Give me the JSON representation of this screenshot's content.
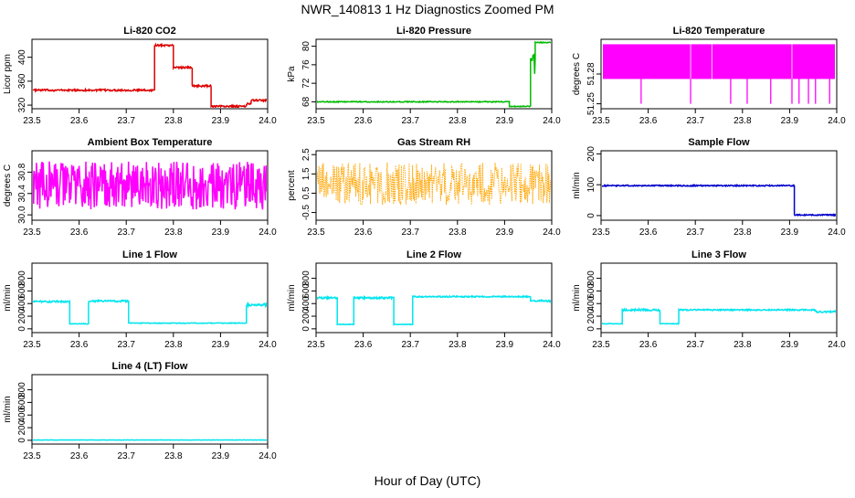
{
  "title": "NWR_140813  1 Hz Diagnostics Zoomed PM",
  "xlabel": "Hour of Day (UTC)",
  "chart_data": [
    {
      "type": "line",
      "title": "Li-820 CO2",
      "ylabel": "Licor ppm",
      "color": "#dd0000",
      "xlim": [
        23.5,
        24.0
      ],
      "ylim": [
        314,
        430
      ],
      "xticks": [
        "23.5",
        "23.6",
        "23.7",
        "23.8",
        "23.9",
        "24.0"
      ],
      "yticks": [
        "320",
        "360",
        "400"
      ],
      "ytick_values": [
        320,
        360,
        400
      ],
      "segments": [
        [
          23.5,
          23.76,
          345,
          1.5
        ],
        [
          23.76,
          23.8,
          420,
          1.5
        ],
        [
          23.8,
          23.84,
          383,
          1.5
        ],
        [
          23.84,
          23.88,
          352,
          1.5
        ],
        [
          23.88,
          23.955,
          318,
          1.5
        ],
        [
          23.955,
          23.965,
          322,
          1.5
        ],
        [
          23.965,
          24.0,
          328,
          1.5
        ]
      ]
    },
    {
      "type": "line",
      "title": "Li-820 Pressure",
      "ylabel": "kPa",
      "color": "#00bb00",
      "xlim": [
        23.5,
        24.0
      ],
      "ylim": [
        66.5,
        81.5
      ],
      "xticks": [
        "23.5",
        "23.6",
        "23.7",
        "23.8",
        "23.9",
        "24.0"
      ],
      "yticks": [
        "68",
        "72",
        "76",
        "80"
      ],
      "ytick_values": [
        68,
        72,
        76,
        80
      ],
      "segments": [
        [
          23.5,
          23.91,
          68,
          0.1
        ],
        [
          23.91,
          23.955,
          67,
          0.1
        ],
        [
          23.955,
          23.965,
          76,
          2.5
        ],
        [
          23.965,
          24.0,
          80.8,
          0.1
        ]
      ]
    },
    {
      "type": "line",
      "title": "Li-820 Temperature",
      "ylabel": "degrees C",
      "color": "#ff00ff",
      "xlim": [
        23.5,
        24.0
      ],
      "ylim": [
        51.245,
        51.315
      ],
      "xticks": [
        "23.5",
        "23.6",
        "23.7",
        "23.8",
        "23.9",
        "24.0"
      ],
      "yticks": [
        "51.25",
        "51.28"
      ],
      "ytick_values": [
        51.25,
        51.28
      ],
      "band": [
        23.5,
        24.0,
        51.275,
        51.31
      ],
      "spikes": [
        23.585,
        23.69,
        23.775,
        23.81,
        23.86,
        23.905,
        23.92,
        23.94,
        23.955,
        23.985
      ],
      "spike_floor": 51.25
    },
    {
      "type": "line",
      "title": "Ambient Box Temperature",
      "ylabel": "degrees C",
      "color": "#ff00ff",
      "xlim": [
        23.5,
        24.0
      ],
      "ylim": [
        29.9,
        31.2
      ],
      "xticks": [
        "23.5",
        "23.6",
        "23.7",
        "23.8",
        "23.9",
        "24.0"
      ],
      "yticks": [
        "30.0",
        "30.4",
        "30.8"
      ],
      "ytick_values": [
        30.0,
        30.4,
        30.8
      ],
      "segments": [
        [
          23.5,
          24.0,
          30.55,
          0.45
        ]
      ]
    },
    {
      "type": "line",
      "title": "Gas Stream RH",
      "ylabel": "percent",
      "color": "#ffa500",
      "xlim": [
        23.5,
        24.0
      ],
      "ylim": [
        -0.9,
        2.7
      ],
      "xticks": [
        "23.5",
        "23.6",
        "23.7",
        "23.8",
        "23.9",
        "24.0"
      ],
      "yticks": [
        "-0.5",
        "0.5",
        "1.5",
        "2.5"
      ],
      "ytick_values": [
        -0.5,
        0.5,
        1.5,
        2.5
      ],
      "dotted": true,
      "segments": [
        [
          23.5,
          24.0,
          1.0,
          1.1
        ]
      ]
    },
    {
      "type": "line",
      "title": "Sample Flow",
      "ylabel": "ml/min",
      "color": "#0000cc",
      "xlim": [
        23.5,
        24.0
      ],
      "ylim": [
        -15,
        210
      ],
      "xticks": [
        "23.5",
        "23.6",
        "23.7",
        "23.8",
        "23.9",
        "24.0"
      ],
      "yticks": [
        "0",
        "100",
        "200"
      ],
      "ytick_values": [
        0,
        100,
        200
      ],
      "segments": [
        [
          23.5,
          23.91,
          97,
          2
        ],
        [
          23.91,
          24.0,
          2,
          2
        ]
      ]
    },
    {
      "type": "line",
      "title": "Line 1 Flow",
      "ylabel": "ml/min",
      "color": "#00e5ee",
      "xlim": [
        23.5,
        24.0
      ],
      "ylim": [
        -60,
        1040
      ],
      "xticks": [
        "23.5",
        "23.6",
        "23.7",
        "23.8",
        "23.9",
        "24.0"
      ],
      "yticks": [
        "0",
        "200",
        "400",
        "600",
        "800"
      ],
      "ytick_values": [
        0,
        200,
        400,
        600,
        800
      ],
      "segments": [
        [
          23.5,
          23.58,
          430,
          15
        ],
        [
          23.58,
          23.62,
          80,
          5
        ],
        [
          23.62,
          23.705,
          440,
          15
        ],
        [
          23.705,
          23.955,
          90,
          5
        ],
        [
          23.955,
          24.0,
          380,
          20
        ]
      ]
    },
    {
      "type": "line",
      "title": "Line 2 Flow",
      "ylabel": "ml/min",
      "color": "#00e5ee",
      "xlim": [
        23.5,
        24.0
      ],
      "ylim": [
        -60,
        1040
      ],
      "xticks": [
        "23.5",
        "23.6",
        "23.7",
        "23.8",
        "23.9",
        "24.0"
      ],
      "yticks": [
        "0",
        "200",
        "400",
        "600",
        "800"
      ],
      "ytick_values": [
        0,
        200,
        400,
        600,
        800
      ],
      "segments": [
        [
          23.5,
          23.545,
          490,
          15
        ],
        [
          23.545,
          23.58,
          70,
          5
        ],
        [
          23.58,
          23.665,
          490,
          15
        ],
        [
          23.665,
          23.705,
          70,
          5
        ],
        [
          23.705,
          23.955,
          510,
          10
        ],
        [
          23.955,
          24.0,
          440,
          15
        ]
      ]
    },
    {
      "type": "line",
      "title": "Line 3 Flow",
      "ylabel": "ml/min",
      "color": "#00e5ee",
      "xlim": [
        23.5,
        24.0
      ],
      "ylim": [
        -60,
        1040
      ],
      "xticks": [
        "23.5",
        "23.6",
        "23.7",
        "23.8",
        "23.9",
        "24.0"
      ],
      "yticks": [
        "0",
        "200",
        "400",
        "600",
        "800"
      ],
      "ytick_values": [
        0,
        200,
        400,
        600,
        800
      ],
      "segments": [
        [
          23.5,
          23.545,
          80,
          5
        ],
        [
          23.545,
          23.625,
          300,
          15
        ],
        [
          23.625,
          23.665,
          80,
          5
        ],
        [
          23.665,
          23.955,
          300,
          10
        ],
        [
          23.955,
          24.0,
          270,
          15
        ]
      ]
    },
    {
      "type": "line",
      "title": "Line 4 (LT) Flow",
      "ylabel": "ml/min",
      "color": "#00e5ee",
      "xlim": [
        23.5,
        24.0
      ],
      "ylim": [
        -60,
        1040
      ],
      "xticks": [
        "23.5",
        "23.6",
        "23.7",
        "23.8",
        "23.9",
        "24.0"
      ],
      "yticks": [
        "0",
        "200",
        "400",
        "600",
        "800"
      ],
      "ytick_values": [
        0,
        200,
        400,
        600,
        800
      ],
      "segments": [
        [
          23.5,
          24.0,
          5,
          2
        ]
      ]
    }
  ]
}
